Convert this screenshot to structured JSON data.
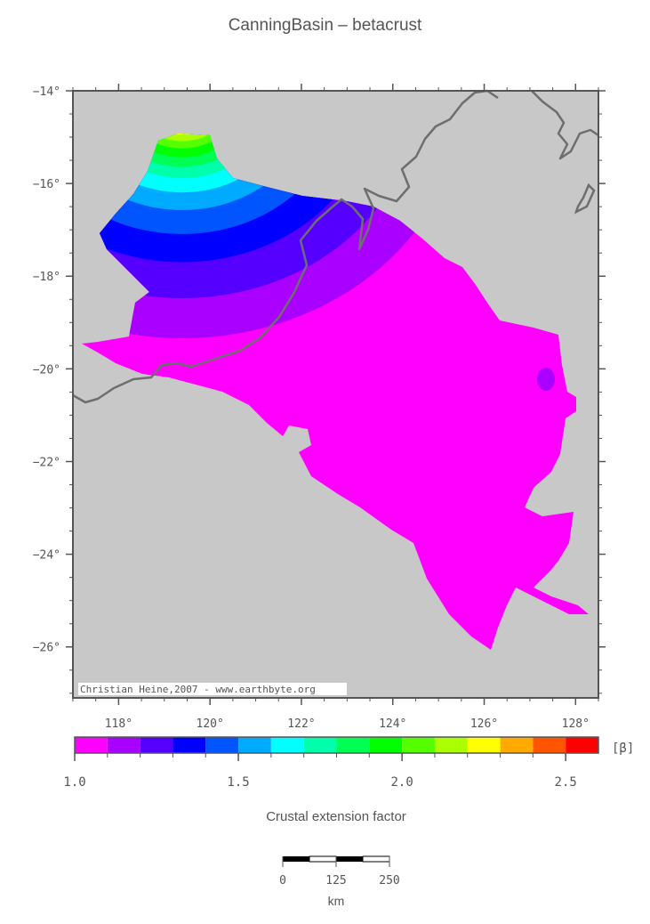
{
  "title": "CanningBasin – betacrust",
  "map": {
    "lon_ticks": [
      "118°",
      "120°",
      "122°",
      "124°",
      "126°",
      "128°"
    ],
    "lat_ticks": [
      "−14°",
      "−16°",
      "−18°",
      "−20°",
      "−22°",
      "−24°",
      "−26°"
    ],
    "lon_range": [
      117.0,
      128.5
    ],
    "lat_range": [
      -27.1,
      -14.0
    ],
    "credit": "Christian Heine,2007 - www.earthbyte.org",
    "colors": {
      "land": "#c8c8c8",
      "coast": "#6e6e6e",
      "basin": "#ff00ff"
    }
  },
  "colorbar": {
    "unit": "[β]",
    "tick_labels": [
      "1.0",
      "1.5",
      "2.0",
      "2.5"
    ],
    "range": [
      1.0,
      2.6
    ],
    "colors": [
      "#ff00ff",
      "#aa00ff",
      "#5500ff",
      "#0000ff",
      "#0055ff",
      "#00aaff",
      "#00ffff",
      "#00ffaa",
      "#00ff55",
      "#00ff00",
      "#55ff00",
      "#aaff00",
      "#ffff00",
      "#ffaa00",
      "#ff5500",
      "#ff0000"
    ]
  },
  "axis_label": "Crustal extension factor",
  "scalebar": {
    "tick_labels": [
      "0",
      "125",
      "250"
    ],
    "unit": "km"
  }
}
